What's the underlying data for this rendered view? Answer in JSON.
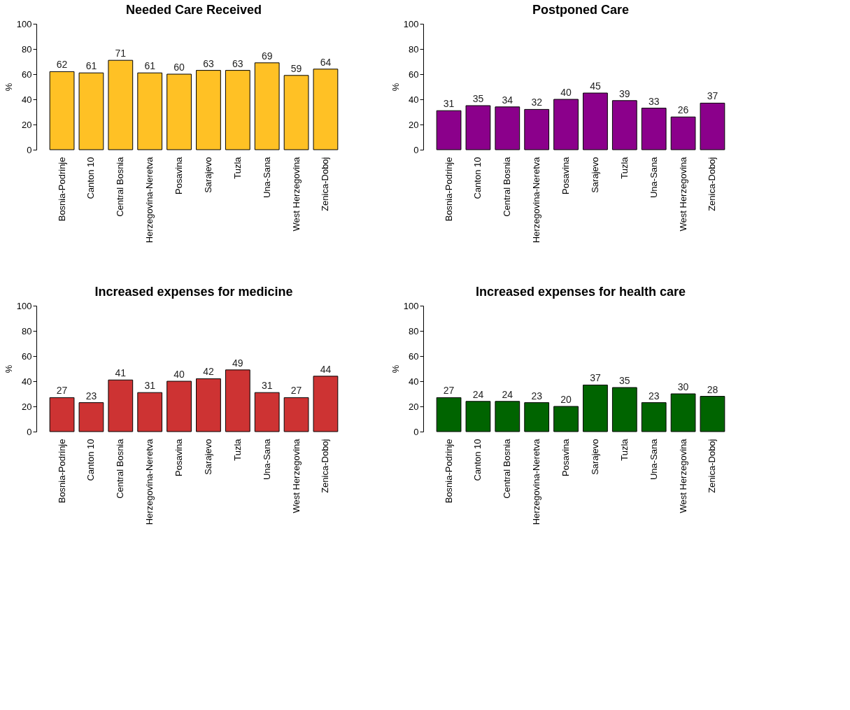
{
  "chart_data": [
    {
      "type": "bar",
      "title": "Needed Care Received",
      "ylabel": "%",
      "categories": [
        "Bosnia-Podrinje",
        "Canton 10",
        "Central Bosnia",
        "Herzegovina-Neretva",
        "Posavina",
        "Sarajevo",
        "Tuzla",
        "Una-Sana",
        "West Herzegovina",
        "Zenica-Doboj"
      ],
      "values": [
        62,
        61,
        71,
        61,
        60,
        63,
        63,
        69,
        59,
        64
      ],
      "color": "#ffc125",
      "ylim": [
        0,
        100
      ],
      "yticks": [
        0,
        20,
        40,
        60,
        80,
        100
      ],
      "data_labels": true,
      "grid": false
    },
    {
      "type": "bar",
      "title": "Postponed Care",
      "ylabel": "%",
      "categories": [
        "Bosnia-Podrinje",
        "Canton 10",
        "Central Bosnia",
        "Herzegovina-Neretva",
        "Posavina",
        "Sarajevo",
        "Tuzla",
        "Una-Sana",
        "West Herzegovina",
        "Zenica-Doboj"
      ],
      "values": [
        31,
        35,
        34,
        32,
        40,
        45,
        39,
        33,
        26,
        37
      ],
      "color": "#8b008b",
      "ylim": [
        0,
        100
      ],
      "yticks": [
        0,
        20,
        40,
        60,
        80,
        100
      ],
      "data_labels": true,
      "grid": false
    },
    {
      "type": "bar",
      "title": "Increased expenses for medicine",
      "ylabel": "%",
      "categories": [
        "Bosnia-Podrinje",
        "Canton 10",
        "Central Bosnia",
        "Herzegovina-Neretva",
        "Posavina",
        "Sarajevo",
        "Tuzla",
        "Una-Sana",
        "West Herzegovina",
        "Zenica-Doboj"
      ],
      "values": [
        27,
        23,
        41,
        31,
        40,
        42,
        49,
        31,
        27,
        44
      ],
      "color": "#cd3333",
      "ylim": [
        0,
        100
      ],
      "yticks": [
        0,
        20,
        40,
        60,
        80,
        100
      ],
      "data_labels": true,
      "grid": false
    },
    {
      "type": "bar",
      "title": "Increased expenses for health care",
      "ylabel": "%",
      "categories": [
        "Bosnia-Podrinje",
        "Canton 10",
        "Central Bosnia",
        "Herzegovina-Neretva",
        "Posavina",
        "Sarajevo",
        "Tuzla",
        "Una-Sana",
        "West Herzegovina",
        "Zenica-Doboj"
      ],
      "values": [
        27,
        24,
        24,
        23,
        20,
        37,
        35,
        23,
        30,
        28
      ],
      "color": "#006400",
      "ylim": [
        0,
        100
      ],
      "yticks": [
        0,
        20,
        40,
        60,
        80,
        100
      ],
      "data_labels": true,
      "grid": false
    }
  ]
}
